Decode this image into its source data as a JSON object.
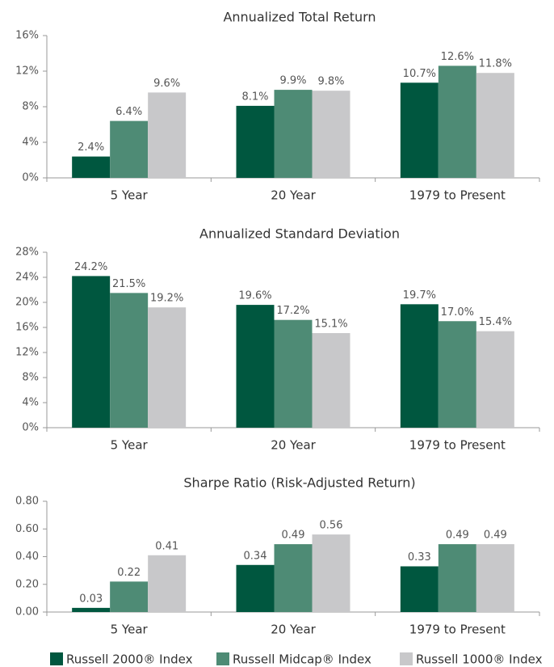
{
  "chart_data": [
    {
      "type": "bar",
      "title": "Annualized Total Return",
      "categories": [
        "5 Year",
        "20 Year",
        "1979 to Present"
      ],
      "series": [
        {
          "name": "Russell 2000® Index",
          "color": "#00573f",
          "values": [
            2.4,
            8.1,
            10.7
          ],
          "value_labels": [
            "2.4%",
            "8.1%",
            "10.7%"
          ]
        },
        {
          "name": "Russell Midcap® Index",
          "color": "#4e8b75",
          "values": [
            6.4,
            9.9,
            12.6
          ],
          "value_labels": [
            "6.4%",
            "9.9%",
            "12.6%"
          ]
        },
        {
          "name": "Russell 1000® Index",
          "color": "#c8c8ca",
          "values": [
            9.6,
            9.8,
            11.8
          ],
          "value_labels": [
            "9.6%",
            "9.8%",
            "11.8%"
          ]
        }
      ],
      "ylim": [
        0,
        16
      ],
      "yticks": [
        {
          "value": 0,
          "label": "0%"
        },
        {
          "value": 4,
          "label": "4%"
        },
        {
          "value": 8,
          "label": "8%"
        },
        {
          "value": 12,
          "label": "12%"
        },
        {
          "value": 16,
          "label": "16%"
        }
      ]
    },
    {
      "type": "bar",
      "title": "Annualized Standard Deviation",
      "categories": [
        "5 Year",
        "20 Year",
        "1979 to Present"
      ],
      "series": [
        {
          "values": [
            24.2,
            19.6,
            19.7
          ],
          "value_labels": [
            "24.2%",
            "19.6%",
            "19.7%"
          ]
        },
        {
          "values": [
            21.5,
            17.2,
            17.0
          ],
          "value_labels": [
            "21.5%",
            "17.2%",
            "17.0%"
          ]
        },
        {
          "values": [
            19.2,
            15.1,
            15.4
          ],
          "value_labels": [
            "19.2%",
            "15.1%",
            "15.4%"
          ]
        }
      ],
      "ylim": [
        0,
        28
      ],
      "yticks": [
        {
          "value": 0,
          "label": "0%"
        },
        {
          "value": 4,
          "label": "4%"
        },
        {
          "value": 8,
          "label": "8%"
        },
        {
          "value": 12,
          "label": "12%"
        },
        {
          "value": 16,
          "label": "16%"
        },
        {
          "value": 20,
          "label": "20%"
        },
        {
          "value": 24,
          "label": "24%"
        },
        {
          "value": 28,
          "label": "28%"
        }
      ]
    },
    {
      "type": "bar",
      "title": "Sharpe Ratio (Risk-Adjusted Return)",
      "categories": [
        "5 Year",
        "20 Year",
        "1979 to Present"
      ],
      "series": [
        {
          "values": [
            0.03,
            0.34,
            0.33
          ],
          "value_labels": [
            "0.03",
            "0.34",
            "0.33"
          ]
        },
        {
          "values": [
            0.22,
            0.49,
            0.49
          ],
          "value_labels": [
            "0.22",
            "0.49",
            "0.49"
          ]
        },
        {
          "values": [
            0.41,
            0.56,
            0.49
          ],
          "value_labels": [
            "0.41",
            "0.56",
            "0.49"
          ]
        }
      ],
      "ylim": [
        0,
        0.8
      ],
      "yticks": [
        {
          "value": 0,
          "label": "0.00"
        },
        {
          "value": 0.2,
          "label": "0.20"
        },
        {
          "value": 0.4,
          "label": "0.40"
        },
        {
          "value": 0.6,
          "label": "0.60"
        },
        {
          "value": 0.8,
          "label": "0.80"
        }
      ]
    }
  ]
}
